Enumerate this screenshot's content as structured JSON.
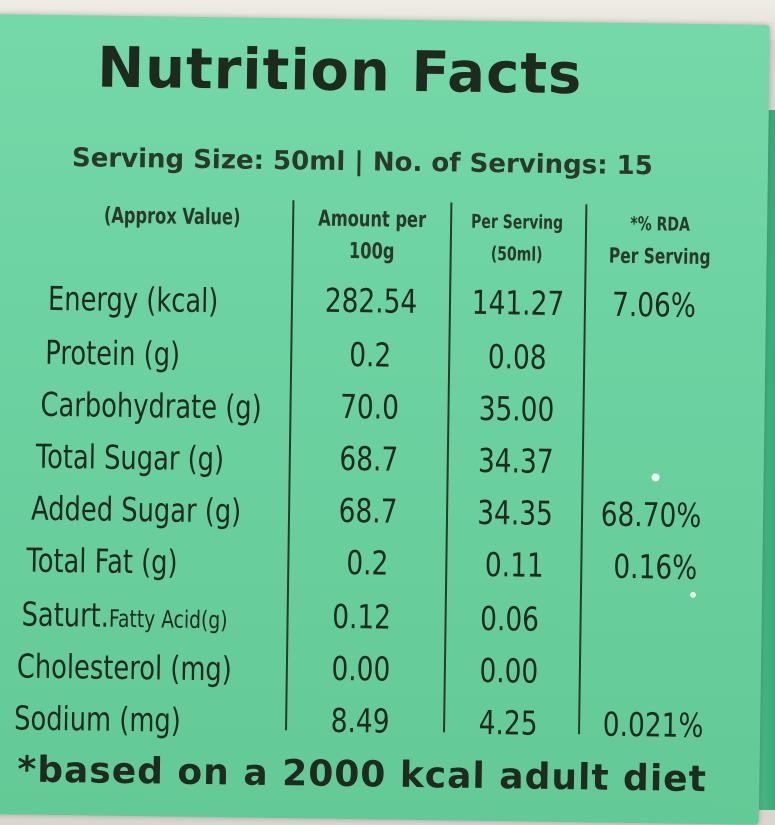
{
  "title": "Nutrition Facts",
  "serving_line": "Serving Size: 50ml | No. of Servings: 15",
  "headers": {
    "approx": "(Approx Value)",
    "per100_l1": "Amount per",
    "per100_l2": "100g",
    "serving_l1": "Per Serving",
    "serving_l2": "(50ml)",
    "rda_l1": "*% RDA",
    "rda_l2": "Per Serving"
  },
  "rows": [
    {
      "label": "Energy (kcal)",
      "per100": "282.54",
      "serving": "141.27",
      "rda": "7.06%"
    },
    {
      "label": "Protein (g)",
      "per100": "0.2",
      "serving": "0.08",
      "rda": ""
    },
    {
      "label": "Carbohydrate (g)",
      "per100": "70.0",
      "serving": "35.00",
      "rda": ""
    },
    {
      "label": "Total Sugar (g)",
      "per100": "68.7",
      "serving": "34.37",
      "rda": ""
    },
    {
      "label": "Added Sugar (g)",
      "per100": "68.7",
      "serving": "34.35",
      "rda": "68.70%"
    },
    {
      "label": "Total Fat (g)",
      "per100": "0.2",
      "serving": "0.11",
      "rda": "0.16%"
    },
    {
      "label_a": "Saturt.",
      "label_b": "Fatty Acid(g)",
      "per100": "0.12",
      "serving": "0.06",
      "rda": ""
    },
    {
      "label": "Cholesterol (mg)",
      "per100": "0.00",
      "serving": "0.00",
      "rda": ""
    },
    {
      "label": "Sodium (mg)",
      "per100": "8.49",
      "serving": "4.25",
      "rda": "0.021%"
    }
  ],
  "footer": "*based on a 2000 kcal adult diet",
  "colors": {
    "panel": "#6cd2a1",
    "text": "#1f2b1f"
  }
}
